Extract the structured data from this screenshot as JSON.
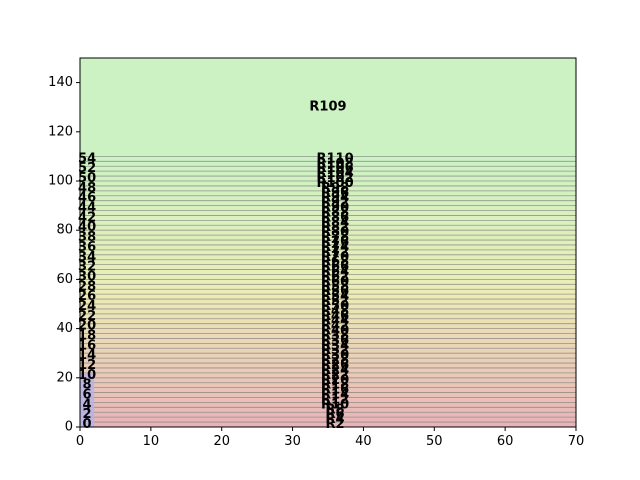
{
  "chart_data": {
    "type": "area",
    "title": "",
    "xlabel": "",
    "ylabel": "",
    "xlim": [
      0,
      70
    ],
    "ylim": [
      0,
      150
    ],
    "x_ticks": [
      "0",
      "10",
      "20",
      "30",
      "40",
      "50",
      "60",
      "70"
    ],
    "y_ticks": [
      "0",
      "20",
      "40",
      "60",
      "80",
      "100",
      "120",
      "140"
    ],
    "grid": false,
    "legend": "none",
    "colors": {
      "background": "#ffffff",
      "band_bottom": "#e8b4b8",
      "band_middle": "#ecedb6",
      "band_top": "#ccf2c4",
      "band_line": "#7a7a7a",
      "left_strip": "#b4b4e8",
      "frame": "#000000"
    },
    "top_region": {
      "label": "R109",
      "y_range": [
        110,
        150
      ],
      "label_x": 35,
      "label_y": 130
    },
    "band_labels": [
      "R2",
      "R4",
      "R6",
      "R8",
      "R10",
      "R12",
      "R14",
      "R16",
      "R18",
      "R20",
      "R22",
      "R24",
      "R26",
      "R28",
      "R30",
      "R32",
      "R34",
      "R36",
      "R38",
      "R40",
      "R42",
      "R44",
      "R46",
      "R48",
      "R50",
      "R52",
      "R54",
      "R56",
      "R58",
      "R60",
      "R62",
      "R64",
      "R66",
      "R68",
      "R70",
      "R72",
      "R74",
      "R76",
      "R78",
      "R80",
      "R82",
      "R84",
      "R86",
      "R88",
      "R90",
      "R92",
      "R94",
      "R96",
      "R98",
      "R100",
      "R102",
      "R104",
      "R106",
      "R108",
      "R110"
    ],
    "band_step": 2,
    "band_label_x": 36,
    "left_strip": {
      "x_range": [
        0,
        2
      ],
      "y_range": [
        0,
        22
      ]
    },
    "left_edge_labels": [
      "0",
      "2",
      "4",
      "6",
      "8",
      "10",
      "12",
      "14",
      "16",
      "18",
      "20",
      "22",
      "24",
      "26",
      "28",
      "30",
      "32",
      "34",
      "36",
      "38",
      "40",
      "42",
      "44",
      "46",
      "48",
      "50",
      "52",
      "54"
    ],
    "left_edge_label_x": 1
  }
}
